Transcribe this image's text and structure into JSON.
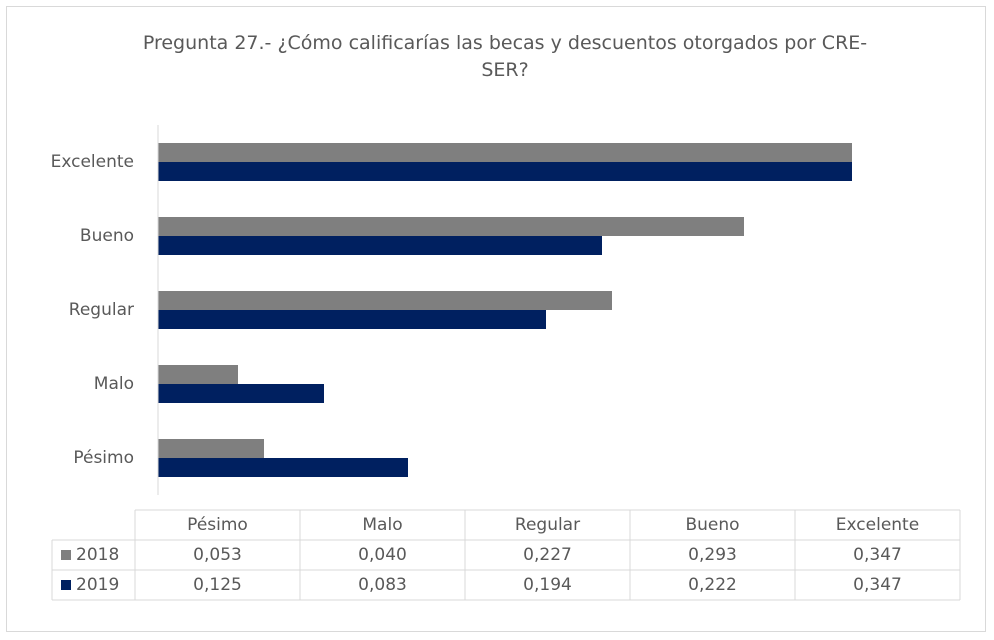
{
  "chart_data": {
    "type": "bar",
    "orientation": "horizontal",
    "title": "Pregunta 27.- ¿Cómo calificarías las becas y descuentos otorgados por CRE- SER?",
    "categories": [
      "Pésimo",
      "Malo",
      "Regular",
      "Bueno",
      "Excelente"
    ],
    "series": [
      {
        "name": "2018",
        "color": "#7f7f7f",
        "values": [
          0.053,
          0.04,
          0.227,
          0.293,
          0.347
        ],
        "value_labels": [
          "0,053",
          "0,040",
          "0,227",
          "0,293",
          "0,347"
        ]
      },
      {
        "name": "2019",
        "color": "#002060",
        "values": [
          0.125,
          0.083,
          0.194,
          0.222,
          0.347
        ],
        "value_labels": [
          "0,125",
          "0,083",
          "0,194",
          "0,222",
          "0,347"
        ]
      }
    ]
  }
}
